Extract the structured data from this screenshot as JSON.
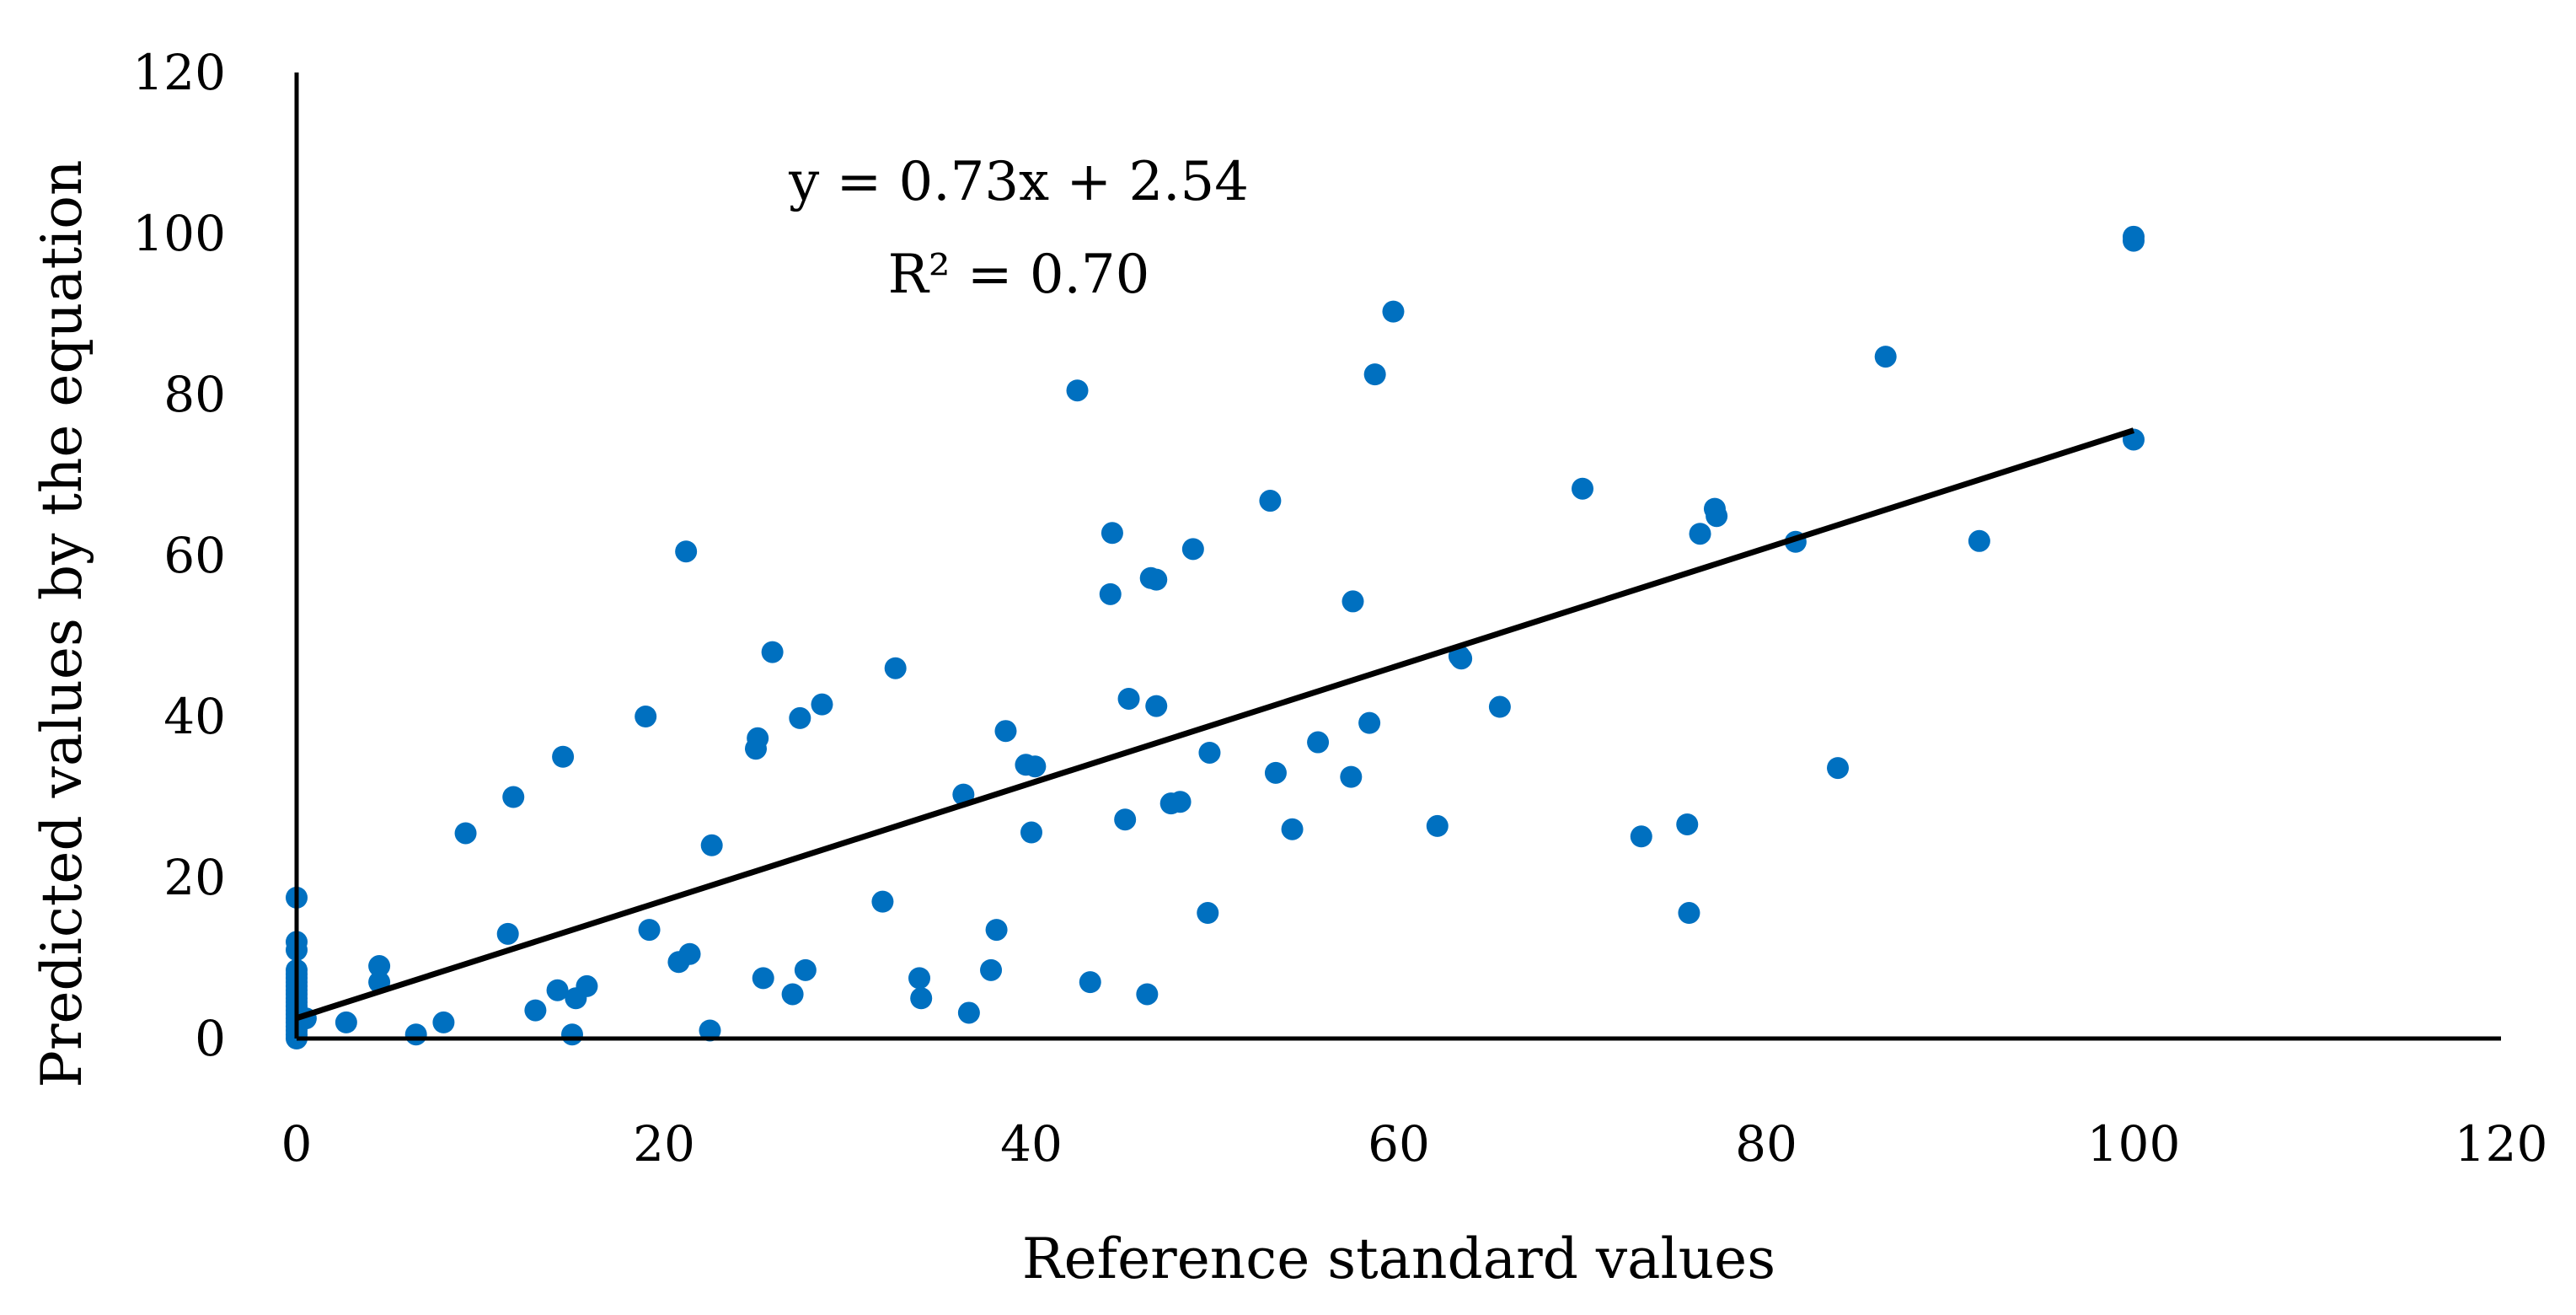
{
  "chart_data": {
    "type": "scatter",
    "title": "",
    "xlabel": "Reference standard values",
    "ylabel": "Predicted values by the equation",
    "xlim": [
      0,
      120
    ],
    "ylim": [
      0,
      120
    ],
    "xticks": [
      "0",
      "20",
      "40",
      "60",
      "80",
      "100",
      "120"
    ],
    "yticks": [
      "0",
      "20",
      "40",
      "60",
      "80",
      "100",
      "120"
    ],
    "grid": false,
    "point_color": "#0070C0",
    "trendline_color": "#000000",
    "equation": "y = 0.73x + 2.54",
    "r_squared": "R² = 0.70",
    "trendline": {
      "slope": 0.73,
      "intercept": 2.54,
      "x_range": [
        0,
        100
      ]
    },
    "series": [
      {
        "name": "Predicted",
        "points": [
          [
            0,
            0
          ],
          [
            0,
            0.5
          ],
          [
            0,
            1
          ],
          [
            0,
            1.5
          ],
          [
            0,
            2
          ],
          [
            0,
            2.5
          ],
          [
            0,
            3
          ],
          [
            0,
            3.5
          ],
          [
            0,
            4
          ],
          [
            0,
            4.5
          ],
          [
            0,
            5
          ],
          [
            0,
            5.5
          ],
          [
            0,
            6
          ],
          [
            0,
            6.5
          ],
          [
            0,
            7
          ],
          [
            0,
            7.5
          ],
          [
            0,
            8
          ],
          [
            0,
            8.5
          ],
          [
            0,
            11
          ],
          [
            0,
            12
          ],
          [
            0,
            17.5
          ],
          [
            0.5,
            2.5
          ],
          [
            2.7,
            2
          ],
          [
            4.5,
            7
          ],
          [
            4.5,
            9
          ],
          [
            6.5,
            0.5
          ],
          [
            8,
            2
          ],
          [
            9.2,
            25.5
          ],
          [
            11.5,
            13
          ],
          [
            11.8,
            30
          ],
          [
            13,
            3.5
          ],
          [
            14.2,
            6
          ],
          [
            14.5,
            35
          ],
          [
            15,
            0.5
          ],
          [
            15.2,
            5
          ],
          [
            15.8,
            6.5
          ],
          [
            19,
            40
          ],
          [
            19.2,
            13.5
          ],
          [
            20.8,
            9.5
          ],
          [
            21.2,
            60.5
          ],
          [
            21.4,
            10.5
          ],
          [
            22.5,
            1
          ],
          [
            22.6,
            24
          ],
          [
            25,
            36
          ],
          [
            25.1,
            37.3
          ],
          [
            25.4,
            7.5
          ],
          [
            25.9,
            48
          ],
          [
            27,
            5.5
          ],
          [
            27.4,
            39.8
          ],
          [
            27.7,
            8.5
          ],
          [
            28.6,
            41.5
          ],
          [
            31.9,
            17
          ],
          [
            32.6,
            46
          ],
          [
            33.9,
            7.5
          ],
          [
            34,
            5
          ],
          [
            36.3,
            30.3
          ],
          [
            36.6,
            3.2
          ],
          [
            37.8,
            8.5
          ],
          [
            38.1,
            13.5
          ],
          [
            38.6,
            38.2
          ],
          [
            39.7,
            34
          ],
          [
            40,
            25.6
          ],
          [
            40.2,
            33.8
          ],
          [
            42.5,
            80.5
          ],
          [
            43.2,
            7
          ],
          [
            44.3,
            55.2
          ],
          [
            44.4,
            62.8
          ],
          [
            45.1,
            27.2
          ],
          [
            45.3,
            42.2
          ],
          [
            46.3,
            5.5
          ],
          [
            46.5,
            57.2
          ],
          [
            46.8,
            57
          ],
          [
            46.8,
            41.3
          ],
          [
            47.6,
            29.2
          ],
          [
            48.1,
            29.4
          ],
          [
            48.8,
            60.8
          ],
          [
            49.6,
            15.6
          ],
          [
            49.7,
            35.5
          ],
          [
            53,
            66.8
          ],
          [
            53.3,
            33
          ],
          [
            54.2,
            26
          ],
          [
            55.6,
            36.8
          ],
          [
            57.4,
            32.5
          ],
          [
            57.5,
            54.3
          ],
          [
            58.4,
            39.2
          ],
          [
            58.7,
            82.5
          ],
          [
            59.7,
            90.3
          ],
          [
            62.1,
            26.4
          ],
          [
            63.3,
            47.5
          ],
          [
            63.4,
            47.2
          ],
          [
            65.5,
            41.2
          ],
          [
            70,
            68.3
          ],
          [
            73.2,
            25.1
          ],
          [
            75.7,
            26.6
          ],
          [
            75.8,
            15.6
          ],
          [
            76.4,
            62.7
          ],
          [
            77.2,
            65.8
          ],
          [
            77.3,
            64.9
          ],
          [
            81.6,
            61.7
          ],
          [
            83.9,
            33.6
          ],
          [
            86.5,
            84.7
          ],
          [
            91.6,
            61.8
          ],
          [
            100,
            99.6
          ],
          [
            100,
            99.1
          ],
          [
            100,
            74.4
          ]
        ]
      }
    ]
  }
}
